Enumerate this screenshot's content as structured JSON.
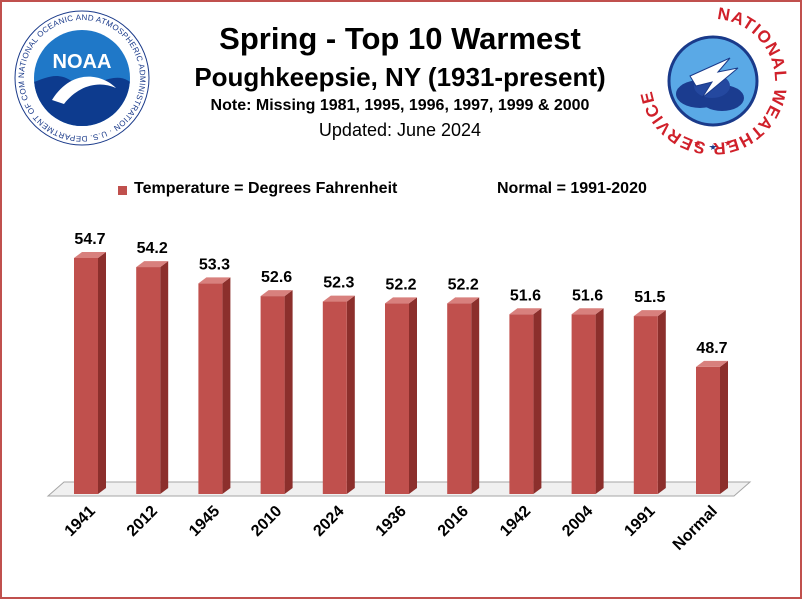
{
  "header": {
    "title": "Spring - Top 10 Warmest",
    "subtitle": "Poughkeepsie, NY (1931-present)",
    "note": "Note: Missing  1981, 1995,   1996, 1997, 1999 & 2000",
    "updated": "Updated: June 2024"
  },
  "logos": {
    "noaa_text": "NOAA",
    "noaa_ring": "NATIONAL OCEANIC AND ATMOSPHERIC ADMINISTRATION · U.S. DEPARTMENT OF COMMERCE",
    "nws_ring": "NATIONAL WEATHER SERVICE"
  },
  "legend": {
    "series": "Temperature = Degrees Fahrenheit",
    "normal_note": "Normal = 1991-2020"
  },
  "colors": {
    "bar_front": "#c0504d",
    "bar_side": "#8c2f2c",
    "bar_top": "#d8807d",
    "frame": "#c0504d"
  },
  "chart_data": {
    "type": "bar",
    "categories": [
      "1941",
      "2012",
      "1945",
      "2010",
      "2024",
      "1936",
      "2016",
      "1942",
      "2004",
      "1991",
      "Normal"
    ],
    "values": [
      54.7,
      54.2,
      53.3,
      52.6,
      52.3,
      52.2,
      52.2,
      51.6,
      51.6,
      51.5,
      48.7
    ],
    "labels": [
      "54.7",
      "54.2",
      "53.3",
      "52.6",
      "52.3",
      "52.2",
      "52.2",
      "51.6",
      "51.6",
      "51.5",
      "48.7"
    ],
    "ylim": [
      41.7,
      56.0
    ],
    "grid": false,
    "legend_position": "top"
  }
}
